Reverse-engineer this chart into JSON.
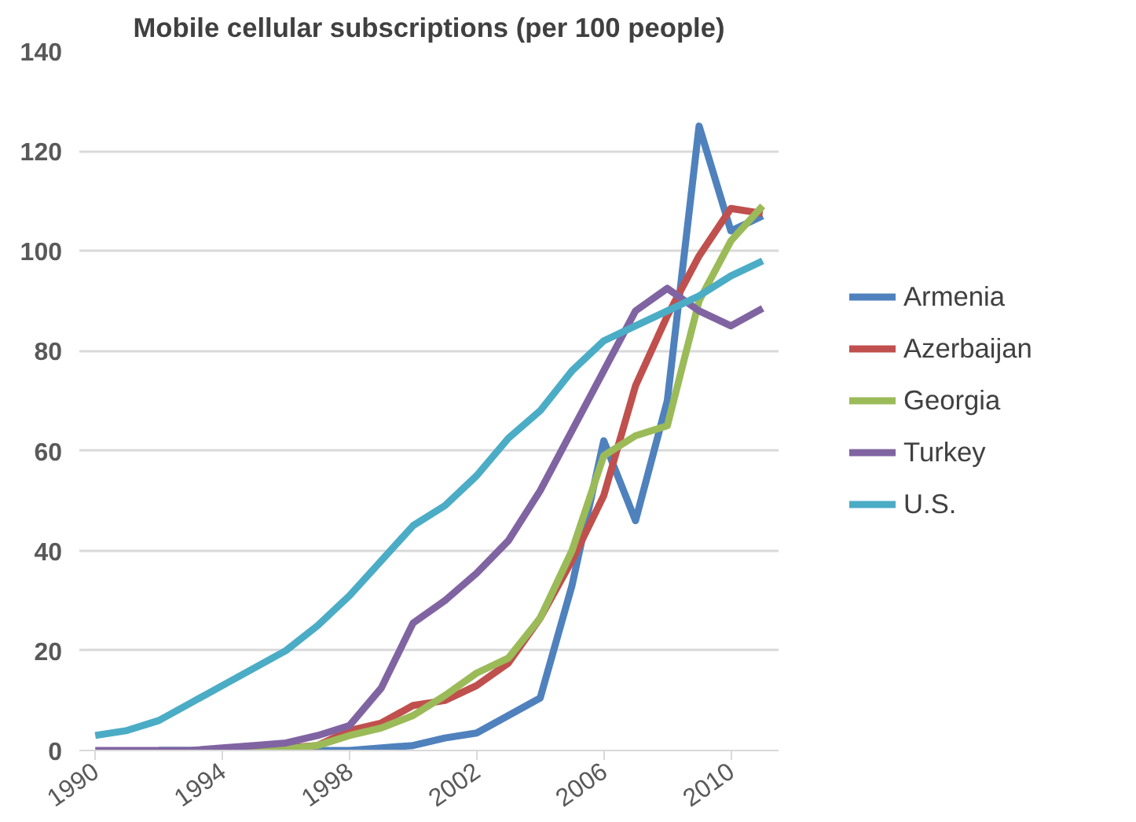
{
  "chart_data": {
    "type": "line",
    "title": "Mobile cellular subscriptions (per 100 people)",
    "x": [
      1990,
      1991,
      1992,
      1993,
      1994,
      1995,
      1996,
      1997,
      1998,
      1999,
      2000,
      2001,
      2002,
      2003,
      2004,
      2005,
      2006,
      2007,
      2008,
      2009,
      2010,
      2011
    ],
    "series": [
      {
        "name": "Armenia",
        "color": "#4f81bd",
        "values": [
          null,
          null,
          0,
          0,
          0,
          0,
          0,
          0,
          0,
          0.5,
          1,
          2.5,
          3.5,
          7,
          10.5,
          33,
          62,
          46,
          70,
          125,
          104,
          107
        ]
      },
      {
        "name": "Azerbaijan",
        "color": "#c0504d",
        "values": [
          null,
          null,
          null,
          null,
          null,
          null,
          0.5,
          1,
          4,
          5.5,
          9,
          10,
          13,
          17.5,
          26.5,
          38,
          51,
          73,
          87,
          99,
          108.5,
          107.5
        ]
      },
      {
        "name": "Georgia",
        "color": "#9bbb59",
        "values": [
          null,
          null,
          null,
          0,
          0,
          0,
          0.3,
          1,
          3,
          4.5,
          7,
          11,
          15.5,
          18.5,
          26.5,
          40,
          59,
          63,
          65,
          90,
          102,
          109
        ]
      },
      {
        "name": "Turkey",
        "color": "#8064a2",
        "values": [
          0,
          0,
          0,
          0,
          0.5,
          1,
          1.5,
          3,
          5,
          12.5,
          25.5,
          30,
          35.5,
          42,
          52,
          64,
          76,
          88,
          92.5,
          88,
          85,
          88.5
        ]
      },
      {
        "name": "U.S.",
        "color": "#4bacc6",
        "values": [
          3,
          4,
          6,
          9.5,
          13,
          16.5,
          20,
          25,
          31,
          38,
          45,
          49,
          55,
          62.5,
          68,
          76,
          82,
          85,
          88,
          91,
          95,
          98
        ]
      }
    ],
    "xlim": [
      1989.5,
      2011.5
    ],
    "xticks": [
      1990,
      1994,
      1998,
      2002,
      2006,
      2010
    ],
    "ylim": [
      0,
      140
    ],
    "yticks": [
      0,
      20,
      40,
      60,
      80,
      100,
      120,
      140
    ],
    "grid": "y",
    "legend": "right",
    "marker": "none",
    "line_style": "solid"
  }
}
